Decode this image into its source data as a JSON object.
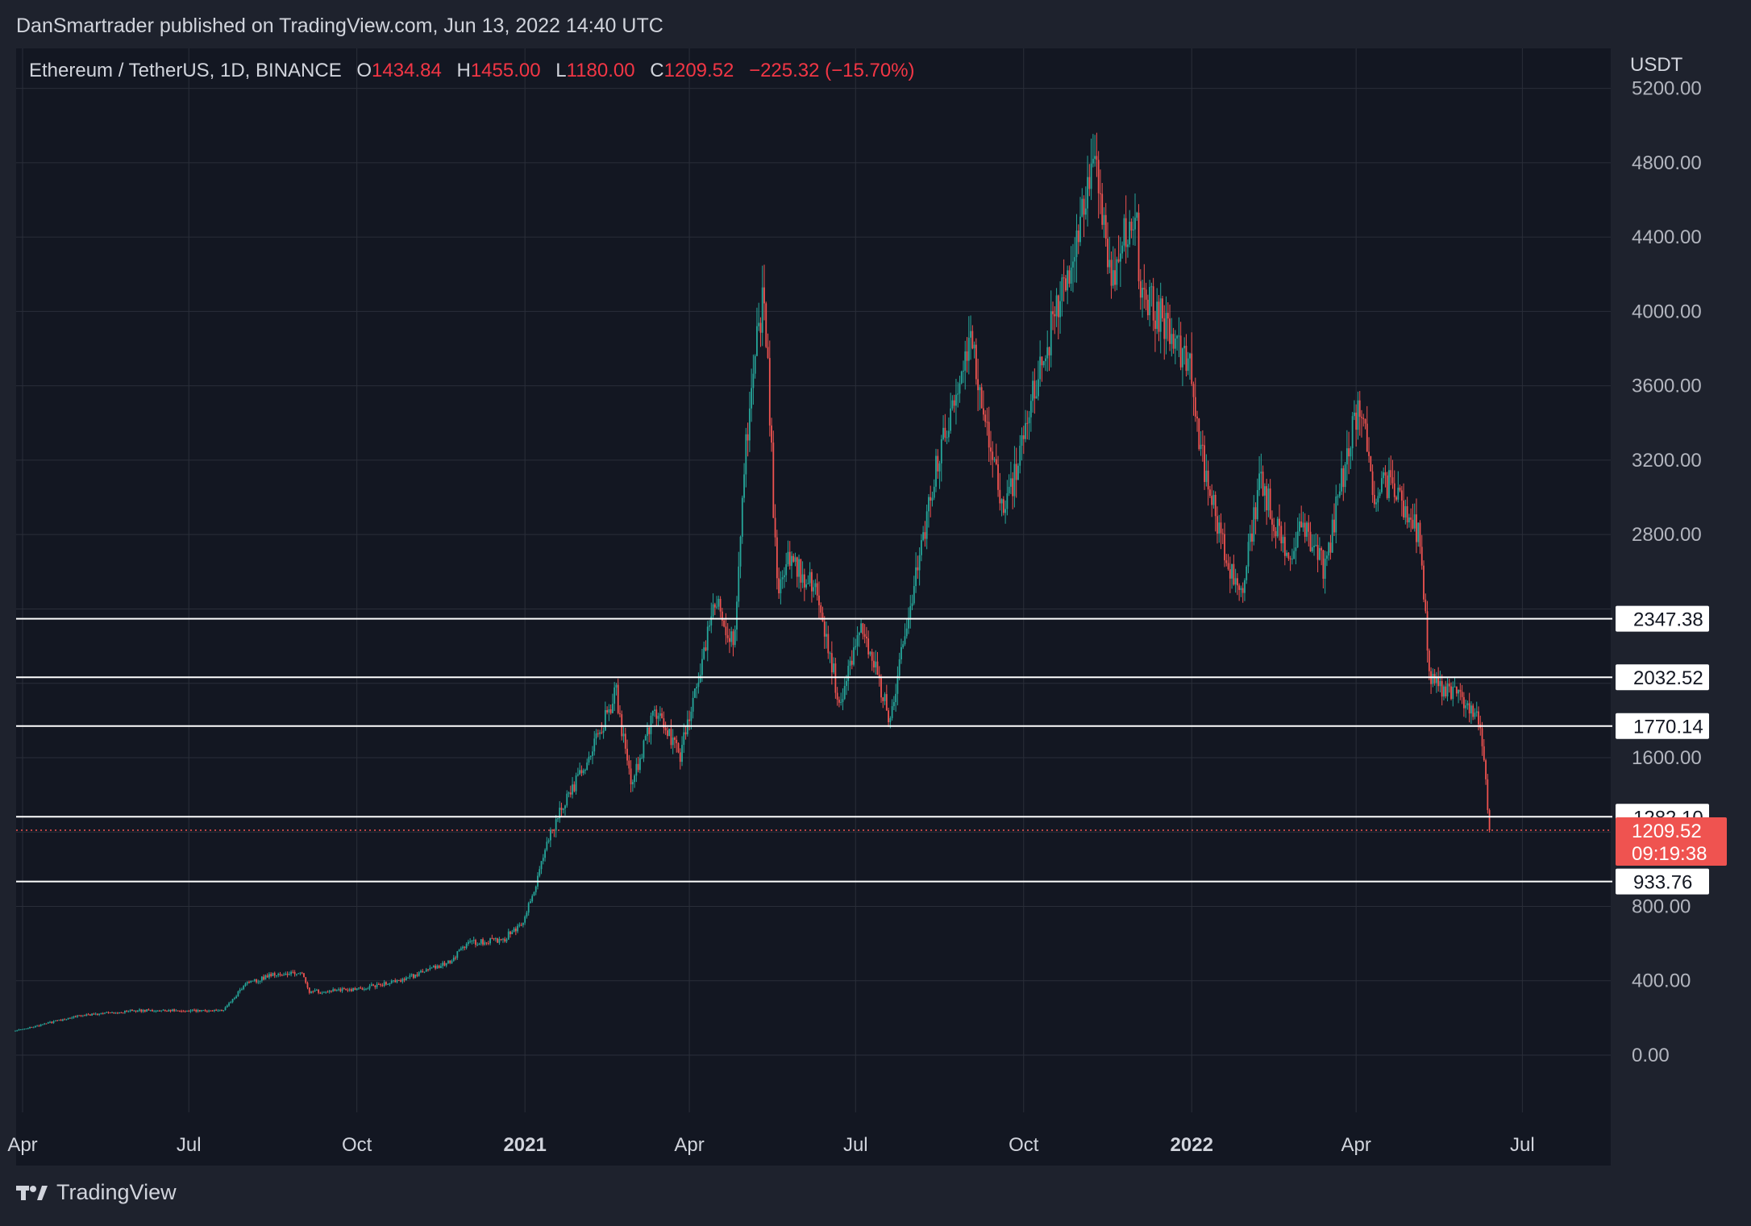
{
  "header": {
    "publisher": "DanSmartrader published on TradingView.com, Jun 13, 2022 14:40 UTC"
  },
  "legend": {
    "symbol": "Ethereum / TetherUS, 1D, BINANCE",
    "open_label": "O",
    "open": "1434.84",
    "high_label": "H",
    "high": "1455.00",
    "low_label": "L",
    "low": "1180.00",
    "close_label": "C",
    "close": "1209.52",
    "change": "−225.32 (−15.70%)"
  },
  "branding": {
    "label": "TradingView",
    "icon": "tradingview-logo-icon"
  },
  "colors": {
    "background": "#1e222d",
    "up": "#26a69a",
    "down": "#ef5350",
    "level_line": "#ffffff",
    "price_badge": "#ef5350"
  },
  "chart_data": {
    "type": "candlestick",
    "currency": "USDT",
    "ylim": [
      -200,
      5300
    ],
    "y_ticks": [
      "0.00",
      "400.00",
      "800.00",
      "1600.00",
      "2800.00",
      "3200.00",
      "3600.00",
      "4000.00",
      "4400.00",
      "4800.00",
      "5200.00"
    ],
    "x_ticks": [
      {
        "label": "Apr",
        "date": "2020-04-01",
        "bold": false
      },
      {
        "label": "Jul",
        "date": "2020-07-01",
        "bold": false
      },
      {
        "label": "Oct",
        "date": "2020-10-01",
        "bold": false
      },
      {
        "label": "2021",
        "date": "2021-01-01",
        "bold": true
      },
      {
        "label": "Apr",
        "date": "2021-04-01",
        "bold": false
      },
      {
        "label": "Jul",
        "date": "2021-07-01",
        "bold": false
      },
      {
        "label": "Oct",
        "date": "2021-10-01",
        "bold": false
      },
      {
        "label": "2022",
        "date": "2022-01-01",
        "bold": true
      },
      {
        "label": "Apr",
        "date": "2022-04-01",
        "bold": false
      },
      {
        "label": "Jul",
        "date": "2022-07-01",
        "bold": false
      }
    ],
    "price_path": [
      [
        "2020-03-28",
        130
      ],
      [
        "2020-05-01",
        210
      ],
      [
        "2020-06-01",
        240
      ],
      [
        "2020-07-20",
        240
      ],
      [
        "2020-08-01",
        380
      ],
      [
        "2020-08-15",
        430
      ],
      [
        "2020-09-01",
        440
      ],
      [
        "2020-09-05",
        340
      ],
      [
        "2020-10-01",
        355
      ],
      [
        "2020-10-25",
        400
      ],
      [
        "2020-11-20",
        500
      ],
      [
        "2020-12-01",
        600
      ],
      [
        "2020-12-20",
        620
      ],
      [
        "2021-01-01",
        730
      ],
      [
        "2021-01-15",
        1200
      ],
      [
        "2021-02-05",
        1600
      ],
      [
        "2021-02-20",
        1950
      ],
      [
        "2021-02-28",
        1450
      ],
      [
        "2021-03-13",
        1850
      ],
      [
        "2021-03-27",
        1600
      ],
      [
        "2021-04-15",
        2450
      ],
      [
        "2021-04-25",
        2200
      ],
      [
        "2021-05-03",
        3400
      ],
      [
        "2021-05-12",
        4150
      ],
      [
        "2021-05-19",
        2500
      ],
      [
        "2021-05-25",
        2700
      ],
      [
        "2021-06-10",
        2500
      ],
      [
        "2021-06-22",
        1900
      ],
      [
        "2021-07-05",
        2300
      ],
      [
        "2021-07-20",
        1800
      ],
      [
        "2021-08-05",
        2700
      ],
      [
        "2021-08-15",
        3200
      ],
      [
        "2021-09-02",
        3900
      ],
      [
        "2021-09-07",
        3500
      ],
      [
        "2021-09-21",
        2900
      ],
      [
        "2021-10-05",
        3500
      ],
      [
        "2021-10-20",
        4050
      ],
      [
        "2021-10-28",
        4300
      ],
      [
        "2021-11-09",
        4750
      ],
      [
        "2021-11-18",
        4200
      ],
      [
        "2021-12-01",
        4600
      ],
      [
        "2021-12-04",
        4100
      ],
      [
        "2021-12-20",
        3900
      ],
      [
        "2021-12-31",
        3700
      ],
      [
        "2022-01-07",
        3200
      ],
      [
        "2022-01-22",
        2600
      ],
      [
        "2022-01-28",
        2500
      ],
      [
        "2022-02-08",
        3100
      ],
      [
        "2022-02-24",
        2600
      ],
      [
        "2022-03-02",
        2900
      ],
      [
        "2022-03-15",
        2600
      ],
      [
        "2022-03-28",
        3300
      ],
      [
        "2022-04-03",
        3500
      ],
      [
        "2022-04-11",
        3000
      ],
      [
        "2022-04-20",
        3100
      ],
      [
        "2022-05-05",
        2800
      ],
      [
        "2022-05-12",
        2000
      ],
      [
        "2022-05-25",
        1950
      ],
      [
        "2022-05-31",
        1900
      ],
      [
        "2022-06-08",
        1800
      ],
      [
        "2022-06-13",
        1209.52
      ]
    ],
    "levels": [
      "2347.38",
      "2032.52",
      "1770.14",
      "1282.10",
      "933.76"
    ],
    "last_price": {
      "value": "1209.52",
      "countdown": "09:19:38"
    }
  }
}
